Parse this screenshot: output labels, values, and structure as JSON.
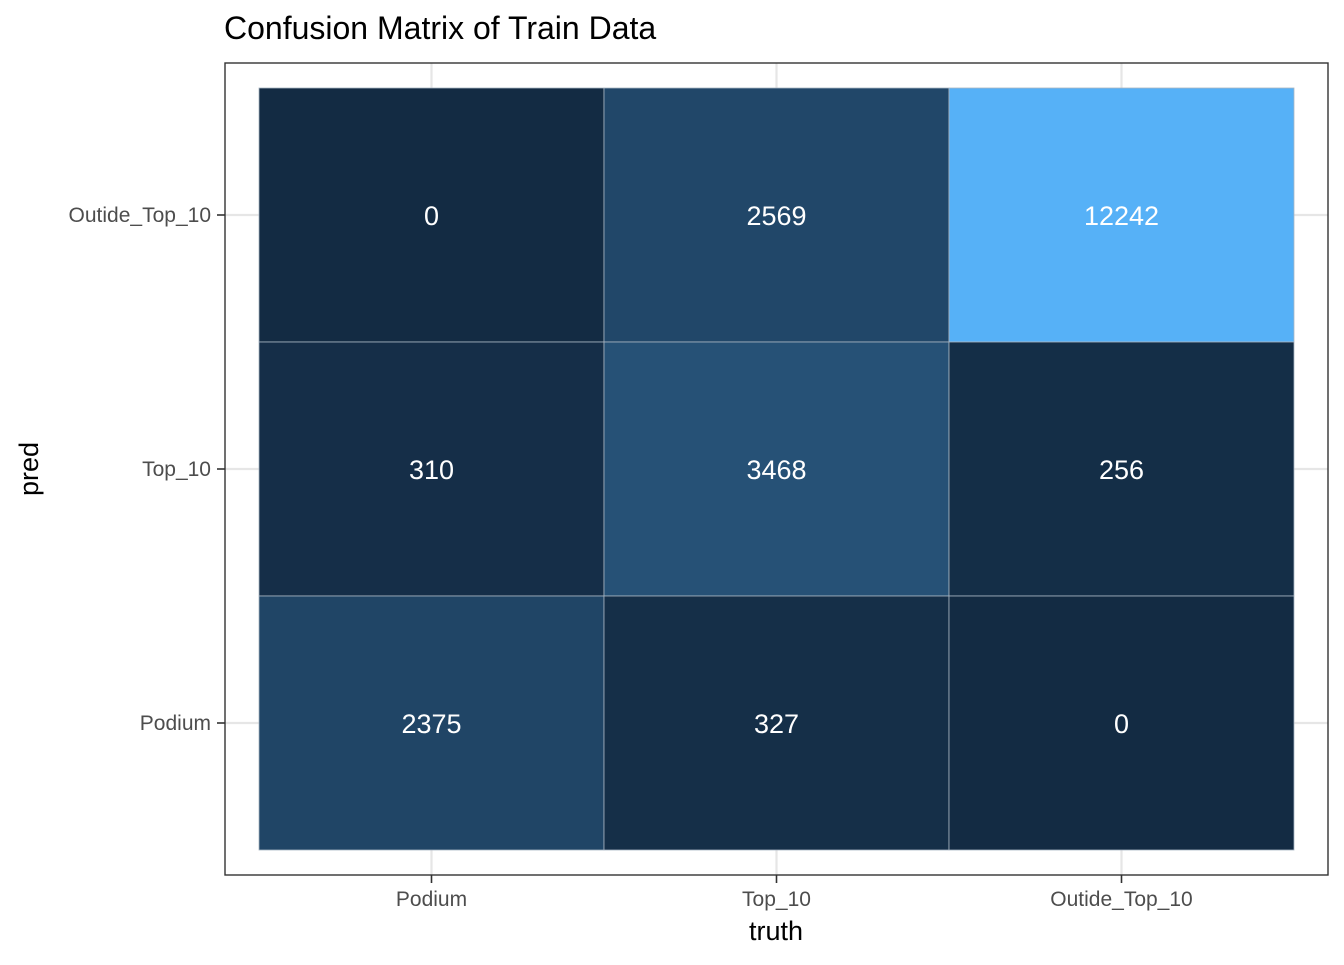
{
  "chart_data": {
    "type": "heatmap",
    "title": "Confusion Matrix of Train Data",
    "xlabel": "truth",
    "ylabel": "pred",
    "x_categories": [
      "Podium",
      "Top_10",
      "Outide_Top_10"
    ],
    "y_categories": [
      "Podium",
      "Top_10",
      "Outide_Top_10"
    ],
    "cells": [
      {
        "truth": "Podium",
        "pred": "Outide_Top_10",
        "value": 0
      },
      {
        "truth": "Top_10",
        "pred": "Outide_Top_10",
        "value": 2569
      },
      {
        "truth": "Outide_Top_10",
        "pred": "Outide_Top_10",
        "value": 12242
      },
      {
        "truth": "Podium",
        "pred": "Top_10",
        "value": 310
      },
      {
        "truth": "Top_10",
        "pred": "Top_10",
        "value": 3468
      },
      {
        "truth": "Outide_Top_10",
        "pred": "Top_10",
        "value": 256
      },
      {
        "truth": "Podium",
        "pred": "Podium",
        "value": 2375
      },
      {
        "truth": "Top_10",
        "pred": "Podium",
        "value": 327
      },
      {
        "truth": "Outide_Top_10",
        "pred": "Podium",
        "value": 0
      }
    ],
    "fill_low": "#132B43",
    "fill_high": "#56B1F7",
    "grid": true,
    "legend": "none"
  }
}
